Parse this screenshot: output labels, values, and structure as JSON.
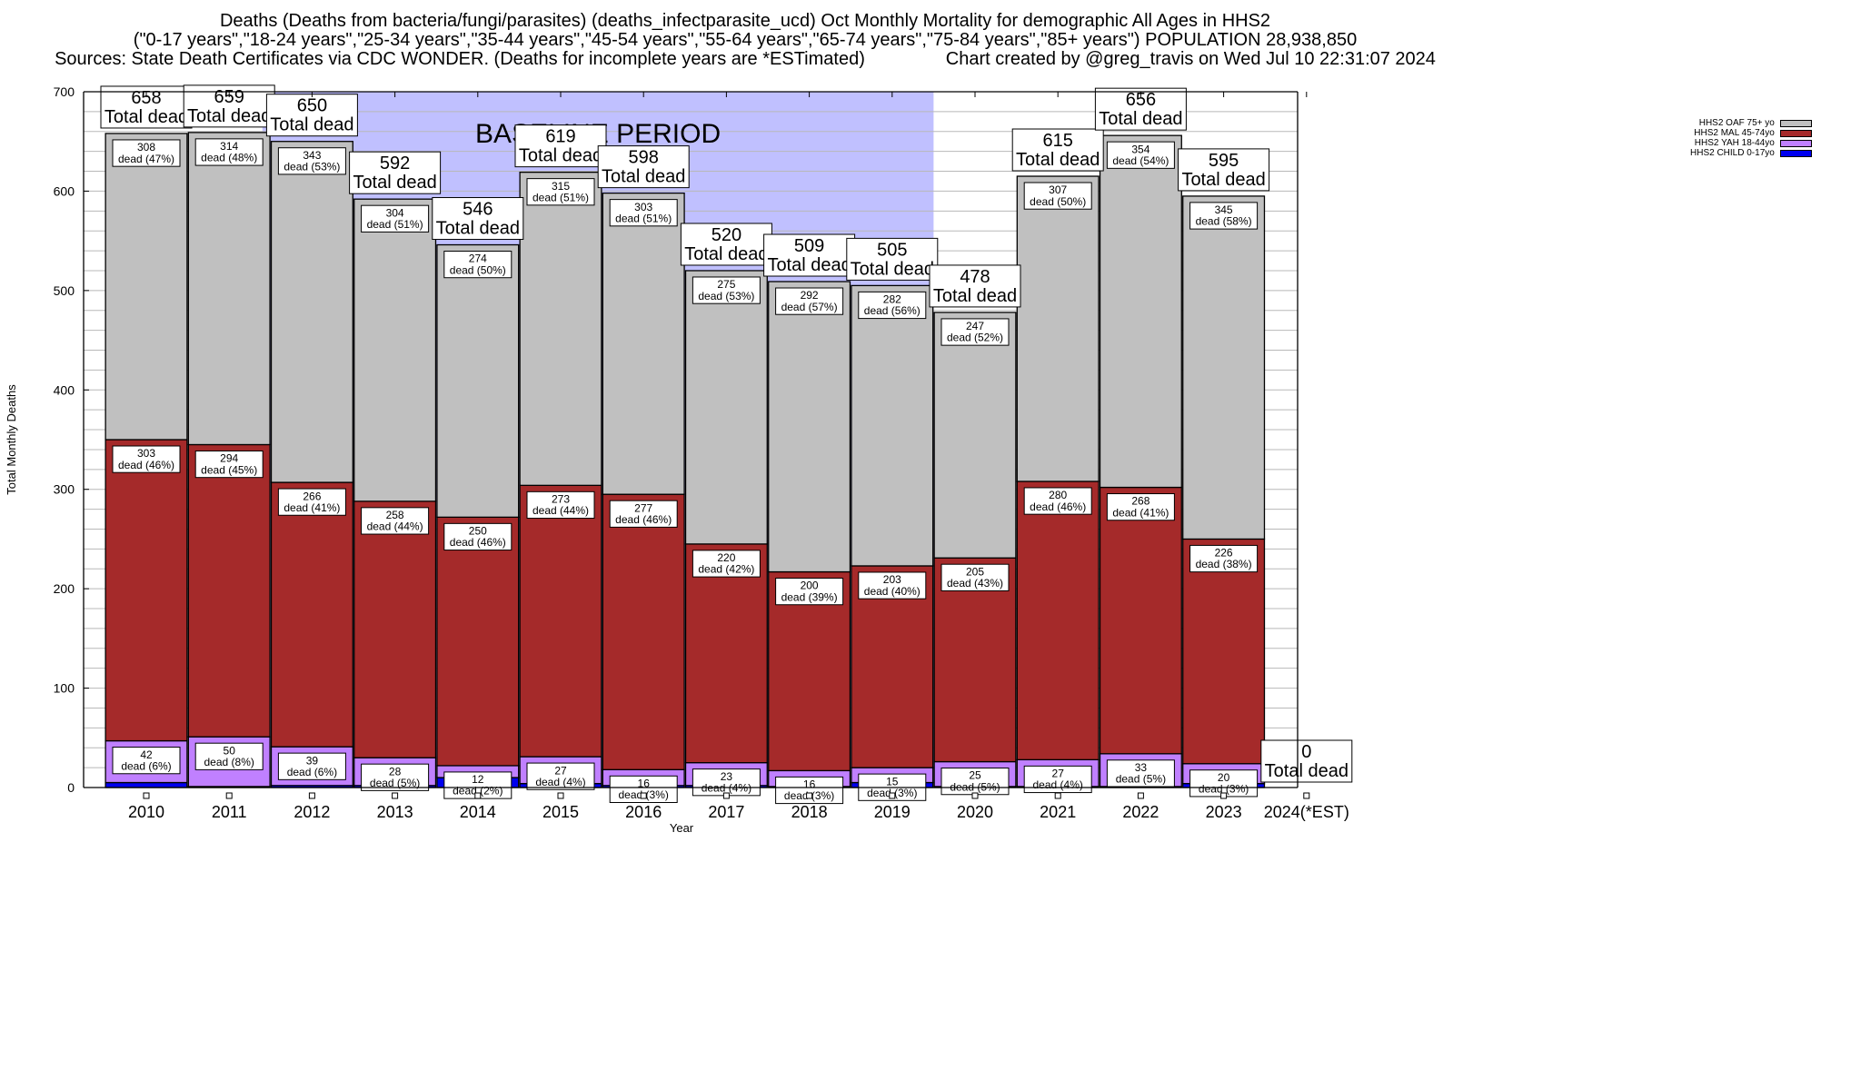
{
  "header": {
    "line1": "Deaths (Deaths from bacteria/fungi/parasites) (deaths_infectparasite_ucd) Oct Monthly Mortality for demographic All Ages in HHS2",
    "line2": "(\"0-17 years\",\"18-24 years\",\"25-34 years\",\"35-44 years\",\"45-54 years\",\"55-64 years\",\"65-74 years\",\"75-84 years\",\"85+ years\") POPULATION 28,938,850",
    "line3": "Sources: State Death Certificates via CDC WONDER. (Deaths for incomplete years are *ESTimated)                Chart created by @greg_travis on Wed Jul 10 22:31:07 2024"
  },
  "chart_data": {
    "type": "bar",
    "stacked": true,
    "title": "Deaths (Deaths from bacteria/fungi/parasites) (deaths_infectparasite_ucd) Oct Monthly Mortality for demographic All Ages in HHS2",
    "xlabel": "Year",
    "ylabel": "Total Monthly Deaths",
    "ylim": [
      0,
      700
    ],
    "yticks": [
      0,
      100,
      200,
      300,
      400,
      500,
      600,
      700
    ],
    "y_minor_step": 20,
    "grid": true,
    "legend_position": "top-right",
    "categories": [
      "2010",
      "2011",
      "2012",
      "2013",
      "2014",
      "2015",
      "2016",
      "2017",
      "2018",
      "2019",
      "2020",
      "2021",
      "2022",
      "2023",
      "2024(*EST)"
    ],
    "series": [
      {
        "name": "HHS2 CHILD 0-17yo",
        "color": "#0000ee",
        "values": [
          5,
          1,
          2,
          2,
          10,
          4,
          2,
          2,
          1,
          5,
          1,
          1,
          1,
          4,
          0
        ]
      },
      {
        "name": "HHS2 YAH 18-44yo",
        "color": "#c080ff",
        "values": [
          42,
          50,
          39,
          28,
          12,
          27,
          16,
          23,
          16,
          15,
          25,
          27,
          33,
          20,
          0
        ],
        "labels": [
          "42\ndead (6%)",
          "50\ndead (8%)",
          "39\ndead (6%)",
          "28\ndead (5%)",
          "12\ndead (2%)",
          "27\ndead (4%)",
          "16\ndead (3%)",
          "23\ndead (4%)",
          "16\ndead (3%)",
          "15\ndead (3%)",
          "25\ndead (5%)",
          "27\ndead (4%)",
          "33\ndead (5%)",
          "20\ndead (3%)",
          ""
        ]
      },
      {
        "name": "HHS2 MAL 45-74yo",
        "color": "#a52a2a",
        "values": [
          303,
          294,
          266,
          258,
          250,
          273,
          277,
          220,
          200,
          203,
          205,
          280,
          268,
          226,
          0
        ],
        "labels": [
          "303\ndead (46%)",
          "294\ndead (45%)",
          "266\ndead (41%)",
          "258\ndead (44%)",
          "250\ndead (46%)",
          "273\ndead (44%)",
          "277\ndead (46%)",
          "220\ndead (42%)",
          "200\ndead (39%)",
          "203\ndead (40%)",
          "205\ndead (43%)",
          "280\ndead (46%)",
          "268\ndead (41%)",
          "226\ndead (38%)",
          ""
        ]
      },
      {
        "name": "HHS2 OAF 75+ yo",
        "color": "#c0c0c0",
        "values": [
          308,
          314,
          343,
          304,
          274,
          315,
          303,
          275,
          292,
          282,
          247,
          307,
          354,
          345,
          0
        ],
        "labels": [
          "308\ndead (47%)",
          "314\ndead (48%)",
          "343\ndead (53%)",
          "304\ndead (51%)",
          "274\ndead (50%)",
          "315\ndead (51%)",
          "303\ndead (51%)",
          "275\ndead (53%)",
          "292\ndead (57%)",
          "282\ndead (56%)",
          "247\ndead (52%)",
          "307\ndead (50%)",
          "354\ndead (54%)",
          "345\ndead (58%)",
          ""
        ]
      }
    ],
    "totals": [
      658,
      659,
      650,
      592,
      546,
      619,
      598,
      520,
      509,
      505,
      478,
      615,
      656,
      595,
      0
    ],
    "total_label_suffix": "Total dead",
    "annotations": [
      {
        "text": "BASELINE PERIOD",
        "from": "2012",
        "to": "2019",
        "shade_color": "#c0c0ff"
      }
    ]
  },
  "legend": [
    {
      "label": "HHS2 OAF 75+ yo",
      "color": "#c0c0c0"
    },
    {
      "label": "HHS2 MAL 45-74yo",
      "color": "#a52a2a"
    },
    {
      "label": "HHS2 YAH 18-44yo",
      "color": "#c080ff"
    },
    {
      "label": "HHS2 CHILD 0-17yo",
      "color": "#0000ee"
    }
  ]
}
